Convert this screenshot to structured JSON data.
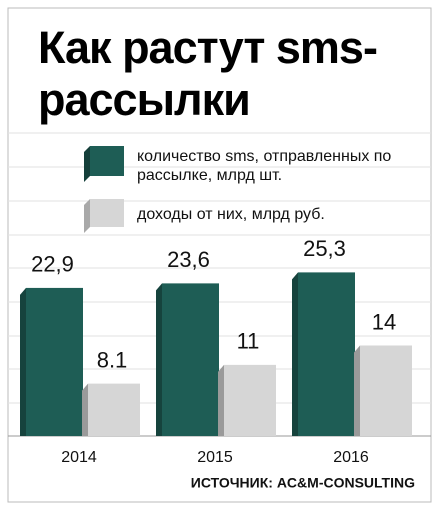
{
  "chart_data": {
    "type": "bar",
    "title": "Как растут sms-рассылки",
    "categories": [
      "2014",
      "2015",
      "2016"
    ],
    "series": [
      {
        "name": "количество sms, отправленных по рассылке, млрд шт.",
        "color": "#1e5d55",
        "values": [
          22.9,
          23.6,
          25.3
        ],
        "value_labels": [
          "22,9",
          "23,6",
          "25,3"
        ]
      },
      {
        "name": "доходы от них, млрд руб.",
        "color": "#d6d6d6",
        "values": [
          8.1,
          11,
          14
        ]
      }
    ],
    "ylim": [
      0,
      30
    ],
    "source": "ИСТОЧНИК: AC&M-CONSULTING"
  }
}
